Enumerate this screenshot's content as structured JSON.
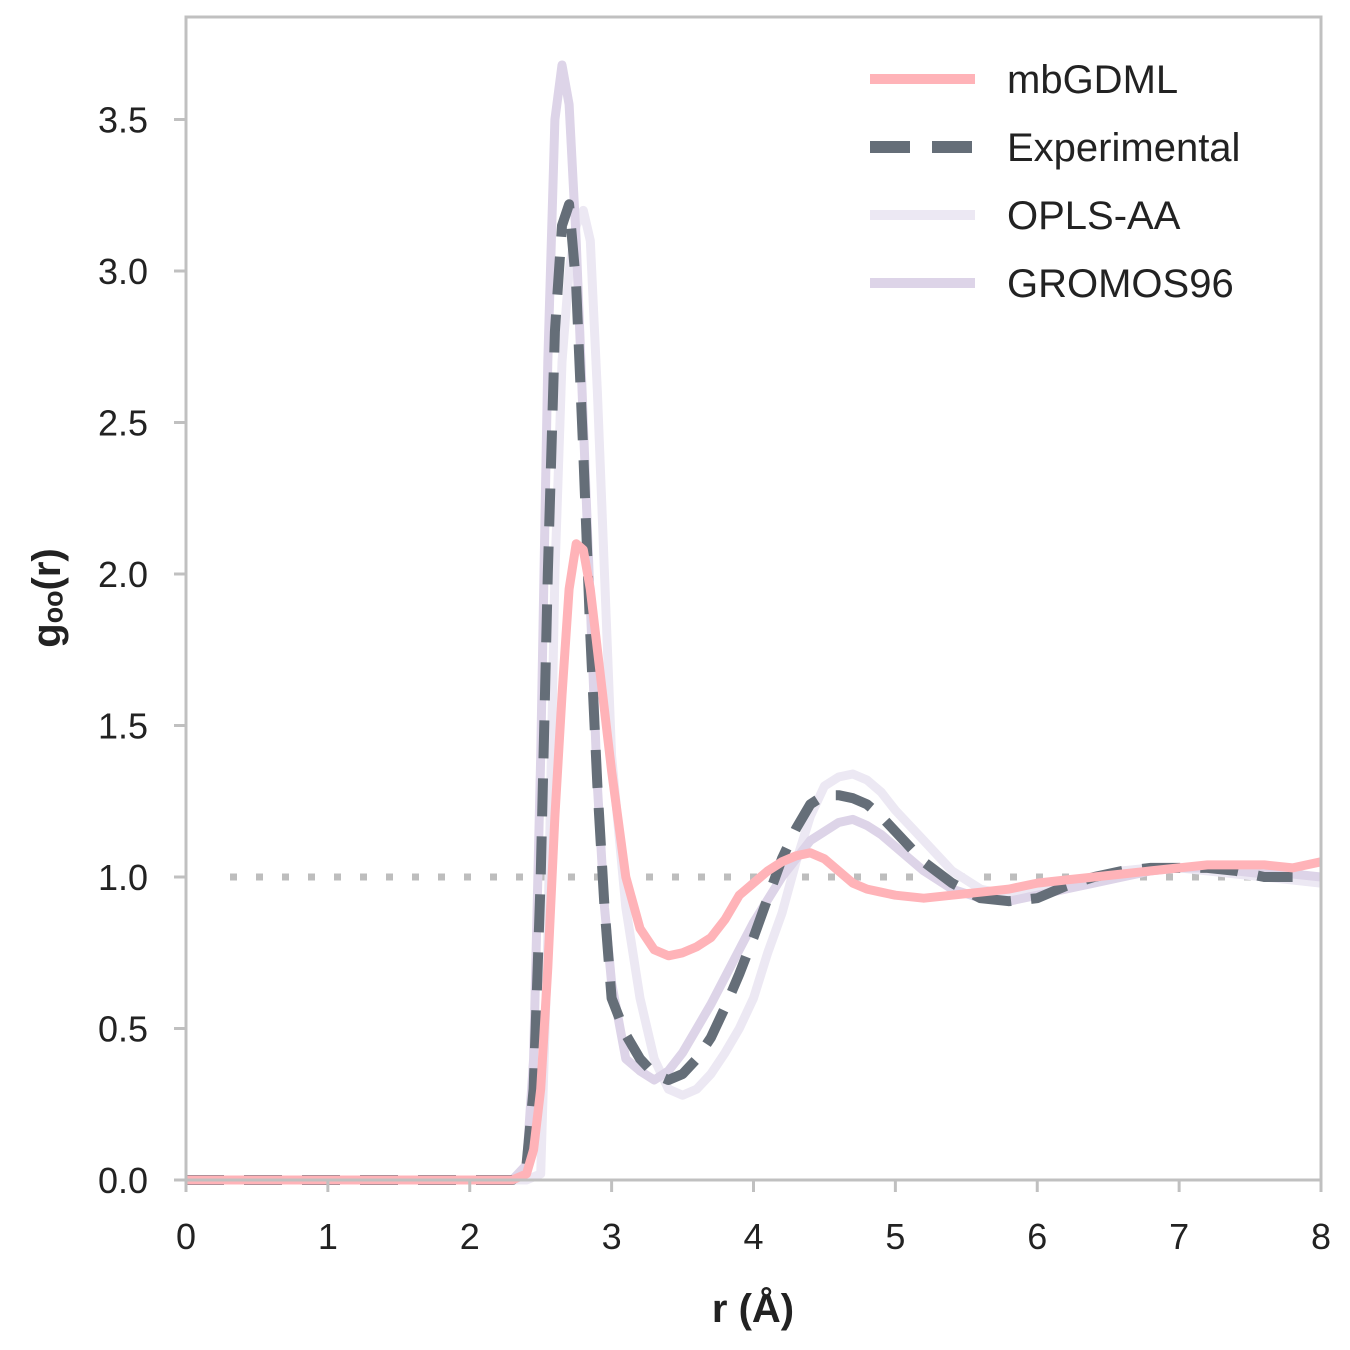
{
  "chart_data": {
    "type": "line",
    "xlabel": "r (Å)",
    "ylabel": "gₒₒ(r)",
    "xlim": [
      0,
      8
    ],
    "ylim": [
      0,
      3.9
    ],
    "x_ticks": [
      "0",
      "1",
      "2",
      "3",
      "4",
      "5",
      "6",
      "7",
      "8"
    ],
    "y_ticks": [
      "0.0",
      "0.5",
      "1.0",
      "1.5",
      "2.0",
      "2.5",
      "3.0",
      "3.5"
    ],
    "grid": false,
    "legend_position": "top-right",
    "reference_line": {
      "y": 1.0,
      "style": "dotted",
      "color": "#bdbdbd"
    },
    "colors": {
      "axis": "#c0c0c0",
      "text": "#222222"
    },
    "series": [
      {
        "name": "OPLS-AA",
        "color": "#ece8f3",
        "dash": "solid",
        "x": [
          0.0,
          2.4,
          2.5,
          2.55,
          2.6,
          2.65,
          2.7,
          2.75,
          2.8,
          2.85,
          2.9,
          2.95,
          3.0,
          3.1,
          3.2,
          3.3,
          3.4,
          3.5,
          3.6,
          3.7,
          3.8,
          3.9,
          4.0,
          4.1,
          4.2,
          4.3,
          4.4,
          4.5,
          4.6,
          4.7,
          4.8,
          4.9,
          5.0,
          5.2,
          5.4,
          5.6,
          5.8,
          6.0,
          6.2,
          6.4,
          6.6,
          6.8,
          7.0,
          7.2,
          7.4,
          7.6,
          7.8,
          8.0
        ],
        "y": [
          0.0,
          0.0,
          0.02,
          0.8,
          2.0,
          2.7,
          3.0,
          3.15,
          3.2,
          3.1,
          2.6,
          2.0,
          1.4,
          0.9,
          0.6,
          0.4,
          0.3,
          0.28,
          0.3,
          0.35,
          0.42,
          0.5,
          0.6,
          0.75,
          0.88,
          1.05,
          1.2,
          1.3,
          1.33,
          1.34,
          1.32,
          1.28,
          1.22,
          1.12,
          1.02,
          0.96,
          0.94,
          0.96,
          0.98,
          1.0,
          1.02,
          1.03,
          1.03,
          1.02,
          1.01,
          1.0,
          0.99,
          0.98
        ]
      },
      {
        "name": "GROMOS96",
        "color": "#ddd4e8",
        "dash": "solid",
        "x": [
          0.0,
          2.3,
          2.4,
          2.45,
          2.5,
          2.55,
          2.6,
          2.65,
          2.7,
          2.75,
          2.8,
          2.85,
          2.9,
          2.95,
          3.0,
          3.1,
          3.2,
          3.3,
          3.4,
          3.5,
          3.6,
          3.7,
          3.8,
          3.9,
          4.0,
          4.2,
          4.4,
          4.6,
          4.7,
          4.8,
          4.9,
          5.0,
          5.2,
          5.4,
          5.6,
          5.8,
          6.0,
          6.2,
          6.4,
          6.6,
          6.8,
          7.0,
          7.2,
          7.4,
          7.6,
          7.8,
          8.0
        ],
        "y": [
          0.0,
          0.0,
          0.05,
          0.4,
          1.4,
          2.7,
          3.5,
          3.68,
          3.55,
          3.1,
          2.5,
          1.9,
          1.3,
          0.9,
          0.65,
          0.4,
          0.36,
          0.33,
          0.36,
          0.42,
          0.5,
          0.58,
          0.67,
          0.76,
          0.85,
          1.0,
          1.12,
          1.18,
          1.19,
          1.17,
          1.14,
          1.1,
          1.02,
          0.96,
          0.93,
          0.92,
          0.94,
          0.96,
          0.98,
          1.0,
          1.02,
          1.03,
          1.03,
          1.02,
          1.01,
          1.01,
          1.0
        ]
      },
      {
        "name": "Experimental",
        "color": "#656e78",
        "dash": "dashed",
        "x": [
          0.0,
          2.3,
          2.4,
          2.45,
          2.5,
          2.55,
          2.6,
          2.65,
          2.7,
          2.75,
          2.8,
          2.85,
          2.9,
          2.95,
          3.0,
          3.1,
          3.2,
          3.3,
          3.4,
          3.5,
          3.6,
          3.7,
          3.8,
          3.9,
          4.0,
          4.1,
          4.2,
          4.3,
          4.4,
          4.5,
          4.6,
          4.7,
          4.8,
          4.9,
          5.0,
          5.2,
          5.4,
          5.6,
          5.8,
          6.0,
          6.2,
          6.4,
          6.6,
          6.8,
          7.0,
          7.2,
          7.4,
          7.6,
          7.8
        ],
        "y": [
          0.0,
          0.0,
          0.05,
          0.3,
          1.0,
          2.0,
          2.8,
          3.15,
          3.22,
          2.95,
          2.4,
          1.8,
          1.3,
          0.9,
          0.6,
          0.48,
          0.4,
          0.35,
          0.33,
          0.35,
          0.4,
          0.47,
          0.57,
          0.68,
          0.8,
          0.93,
          1.06,
          1.16,
          1.24,
          1.27,
          1.27,
          1.26,
          1.24,
          1.2,
          1.15,
          1.05,
          0.98,
          0.93,
          0.92,
          0.93,
          0.97,
          1.0,
          1.02,
          1.03,
          1.03,
          1.03,
          1.02,
          1.0,
          1.0
        ]
      },
      {
        "name": "mbGDML",
        "color": "#ffb3b8",
        "dash": "solid",
        "x": [
          0.0,
          2.3,
          2.4,
          2.45,
          2.5,
          2.55,
          2.6,
          2.65,
          2.7,
          2.75,
          2.8,
          2.85,
          2.9,
          2.95,
          3.0,
          3.1,
          3.2,
          3.3,
          3.4,
          3.5,
          3.6,
          3.7,
          3.8,
          3.9,
          4.0,
          4.1,
          4.2,
          4.3,
          4.4,
          4.5,
          4.6,
          4.7,
          4.8,
          4.9,
          5.0,
          5.2,
          5.4,
          5.6,
          5.8,
          6.0,
          6.2,
          6.4,
          6.6,
          6.8,
          7.0,
          7.2,
          7.4,
          7.6,
          7.8,
          8.0
        ],
        "y": [
          0.0,
          0.0,
          0.02,
          0.1,
          0.3,
          0.7,
          1.2,
          1.6,
          1.95,
          2.1,
          2.08,
          1.95,
          1.75,
          1.55,
          1.35,
          1.0,
          0.83,
          0.76,
          0.74,
          0.75,
          0.77,
          0.8,
          0.86,
          0.94,
          0.98,
          1.02,
          1.05,
          1.07,
          1.08,
          1.06,
          1.02,
          0.98,
          0.96,
          0.95,
          0.94,
          0.93,
          0.94,
          0.95,
          0.96,
          0.98,
          0.99,
          1.0,
          1.01,
          1.02,
          1.03,
          1.04,
          1.04,
          1.04,
          1.03,
          1.05
        ]
      }
    ],
    "legend_order": [
      "mbGDML",
      "Experimental",
      "OPLS-AA",
      "GROMOS96"
    ]
  }
}
